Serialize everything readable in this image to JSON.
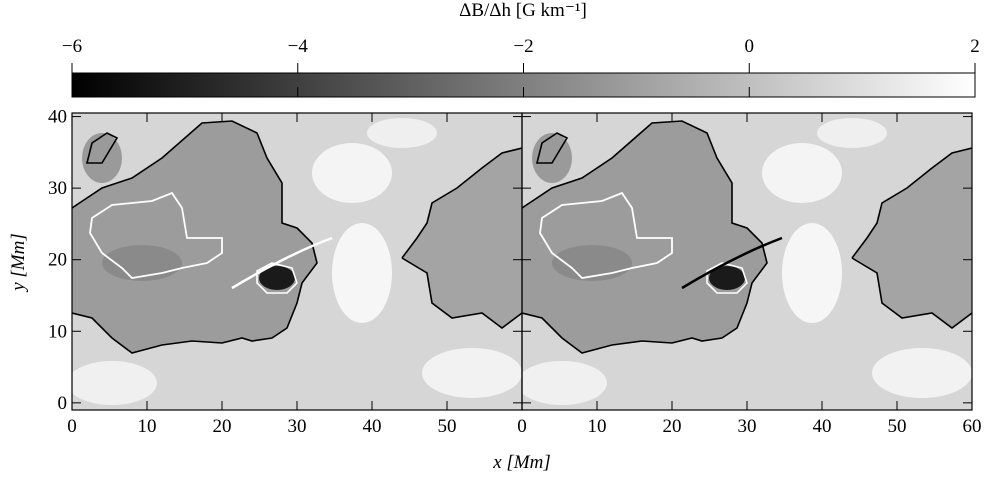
{
  "chart_data": [
    {
      "type": "colorbar",
      "title": "ΔB/Δh [G km⁻¹]",
      "xlim": [
        -6,
        2
      ],
      "xticks": [
        {
          "value": -6,
          "label": "−6"
        },
        {
          "value": -4,
          "label": "−4"
        },
        {
          "value": -2,
          "label": "−2"
        },
        0,
        2
      ],
      "colors": [
        "#000000",
        "#ffffff"
      ]
    },
    {
      "type": "image",
      "xlabel": "x  [Mm]",
      "ylabel": "y  [Mm]",
      "xlim": [
        0,
        60
      ],
      "ylim": [
        -1,
        40.5
      ],
      "xticks": [
        0,
        10,
        20,
        30,
        40,
        50
      ],
      "yticks": [
        0,
        10,
        20,
        30,
        40
      ],
      "contour_color": "#ffffff"
    },
    {
      "type": "image",
      "xlim": [
        0,
        60
      ],
      "ylim": [
        -1,
        40.5
      ],
      "xticks": [
        0,
        10,
        20,
        30,
        40,
        50,
        60
      ],
      "yticks": [
        0,
        10,
        20,
        30,
        40
      ],
      "ytick_labels": false,
      "contour_color": "#000000"
    }
  ]
}
